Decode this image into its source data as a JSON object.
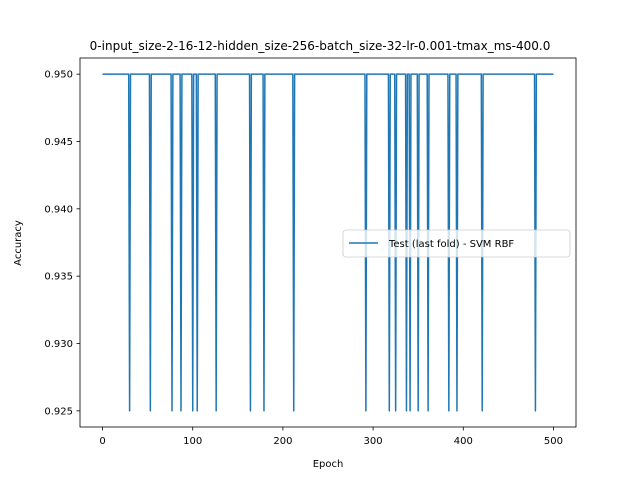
{
  "chart_data": {
    "type": "line",
    "title": "0-input_size-2-16-12-hidden_size-256-batch_size-32-lr-0.001-tmax_ms-400.0",
    "xlabel": "Epoch",
    "ylabel": "Accuracy",
    "xlim": [
      -25,
      525
    ],
    "ylim": [
      0.9238,
      0.9512
    ],
    "x_ticks": [
      0,
      100,
      200,
      300,
      400,
      500
    ],
    "y_ticks": [
      0.925,
      0.93,
      0.935,
      0.94,
      0.945,
      0.95
    ],
    "grid": false,
    "legend_position": "center-right",
    "series": [
      {
        "name": "Test (last fold) - SVM RBF",
        "color": "#1f77b4",
        "baseline": 0.95,
        "dip_value": 0.925,
        "dip_epochs": [
          30,
          53,
          77,
          87,
          100,
          105,
          126,
          164,
          179,
          212,
          292,
          318,
          325,
          337,
          341,
          350,
          361,
          384,
          393,
          421,
          480
        ],
        "epoch_start": 0,
        "epoch_end": 500
      }
    ]
  }
}
